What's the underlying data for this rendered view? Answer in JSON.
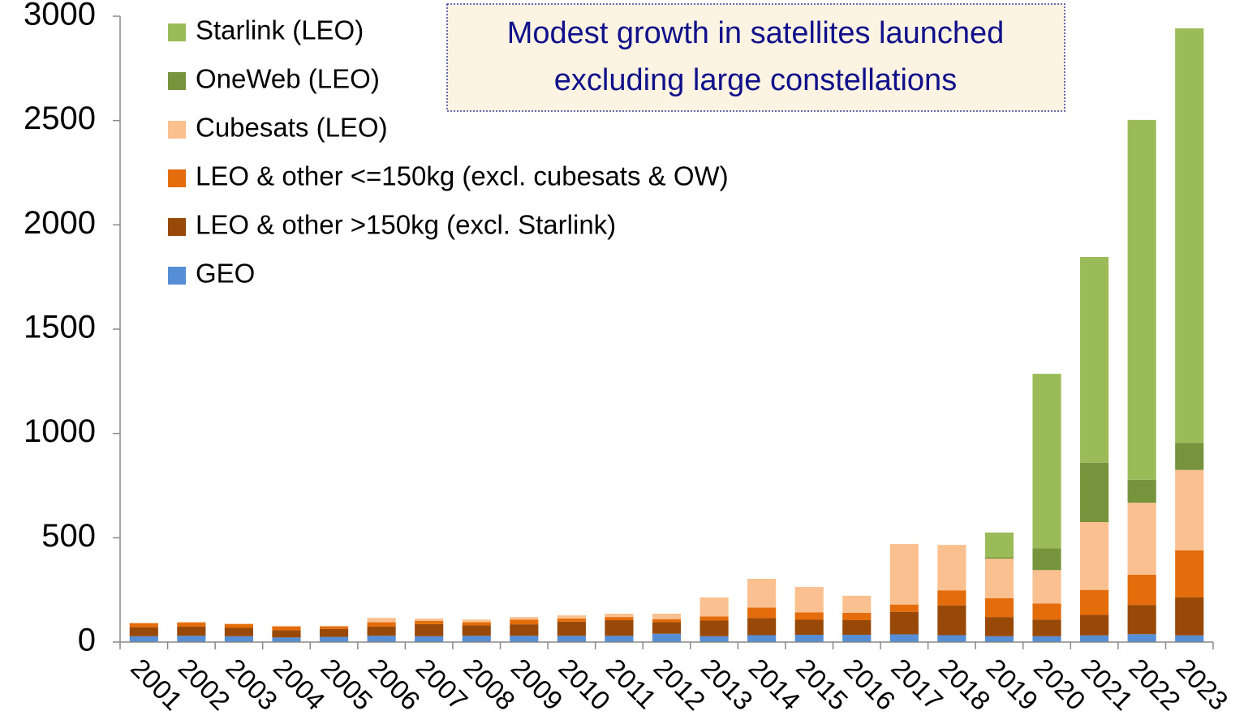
{
  "chart_data": {
    "type": "stacked_bar",
    "title": [
      "Modest growth in satellites launched",
      "excluding large constellations"
    ],
    "categories": [
      "2001",
      "2002",
      "2003",
      "2004",
      "2005",
      "2006",
      "2007",
      "2008",
      "2009",
      "2010",
      "2011",
      "2012",
      "2013",
      "2014",
      "2015",
      "2016",
      "2017",
      "2018",
      "2019",
      "2020",
      "2021",
      "2022",
      "2023"
    ],
    "series": [
      {
        "name": "GEO",
        "color": "#558ed5",
        "values": [
          28,
          30,
          28,
          22,
          25,
          30,
          28,
          30,
          30,
          30,
          30,
          40,
          28,
          33,
          35,
          35,
          37,
          33,
          28,
          28,
          32,
          38,
          32
        ]
      },
      {
        "name": "LEO & other >150kg (excl. Starlink)",
        "color": "#984807",
        "values": [
          42,
          45,
          40,
          35,
          38,
          45,
          58,
          50,
          55,
          68,
          75,
          55,
          75,
          82,
          72,
          70,
          108,
          143,
          92,
          80,
          98,
          140,
          183
        ]
      },
      {
        "name": "LEO & other <=150kg (excl. cubesats & OW)",
        "color": "#e46c0a",
        "values": [
          20,
          18,
          18,
          17,
          12,
          20,
          15,
          15,
          23,
          15,
          15,
          15,
          20,
          50,
          35,
          35,
          35,
          72,
          90,
          77,
          120,
          145,
          225
        ]
      },
      {
        "name": "Cubesats (LEO)",
        "color": "#fac090",
        "values": [
          3,
          4,
          3,
          4,
          3,
          21,
          12,
          13,
          12,
          15,
          16,
          26,
          91,
          138,
          122,
          82,
          290,
          218,
          190,
          160,
          325,
          345,
          385
        ]
      },
      {
        "name": "OneWeb (LEO)",
        "color": "#77933c",
        "values": [
          0,
          0,
          0,
          0,
          0,
          0,
          0,
          0,
          0,
          0,
          0,
          0,
          0,
          0,
          0,
          0,
          0,
          0,
          6,
          105,
          285,
          110,
          130
        ]
      },
      {
        "name": "Starlink (LEO)",
        "color": "#9bbb59",
        "values": [
          0,
          0,
          0,
          0,
          0,
          0,
          0,
          0,
          0,
          0,
          0,
          0,
          0,
          0,
          0,
          0,
          0,
          0,
          119,
          836,
          986,
          1725,
          1987
        ]
      }
    ],
    "ylim": [
      0,
      3000
    ],
    "yticks": [
      0,
      500,
      1000,
      1500,
      2000,
      2500,
      3000
    ],
    "grid": false,
    "legend": "top-left"
  }
}
